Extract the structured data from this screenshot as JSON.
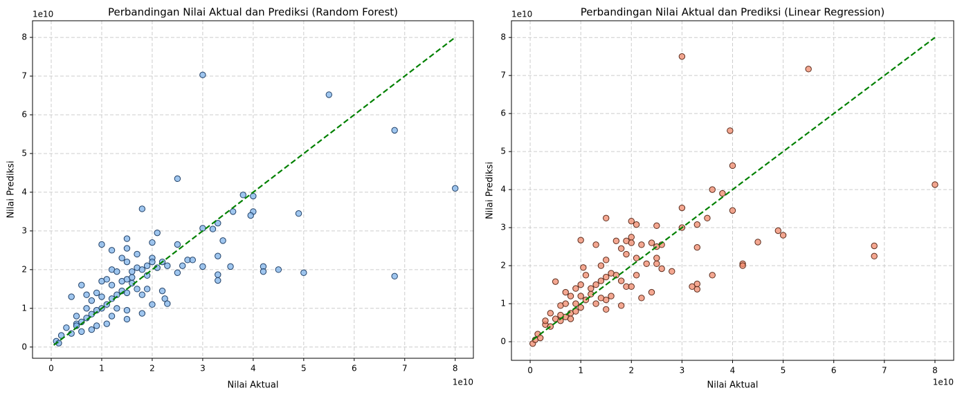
{
  "chart_data": [
    {
      "type": "scatter",
      "title": "Perbandingan Nilai Aktual dan Prediksi (Random Forest)",
      "x_label": "Nilai Aktual",
      "y_label": "Nilai Prediksi",
      "x_offset_label": "1e10",
      "y_offset_label": "1e10",
      "x": [
        3.0,
        5.5,
        6.8,
        8.0,
        2.5,
        1.8,
        3.8,
        4.0,
        4.0,
        3.95,
        4.9,
        3.6,
        3.3,
        3.0,
        3.2,
        3.4,
        2.1,
        2.0,
        2.5,
        1.0,
        1.2,
        1.5,
        1.5,
        1.7,
        3.3,
        3.0,
        3.55,
        4.2,
        4.2,
        4.5,
        5.0,
        6.8,
        3.3,
        3.3,
        2.5,
        2.6,
        2.7,
        2.8,
        2.2,
        2.0,
        2.0,
        1.9,
        2.1,
        2.3,
        2.2,
        2.25,
        2.3,
        2.0,
        1.8,
        1.5,
        1.5,
        1.3,
        1.2,
        1.1,
        0.9,
        0.8,
        0.6,
        0.4,
        0.3,
        0.2,
        0.1,
        0.15,
        0.5,
        0.6,
        0.4,
        0.7,
        0.9,
        1.0,
        1.1,
        1.2,
        1.4,
        1.5,
        1.6,
        1.7,
        1.8,
        1.9,
        1.7,
        1.8,
        1.6,
        1.5,
        1.3,
        1.2,
        1.1,
        1.0,
        0.9,
        0.8,
        0.7,
        0.6,
        0.5,
        1.4,
        1.6,
        1.9,
        1.0,
        0.8,
        0.7,
        0.5,
        1.2,
        1.4,
        1.5,
        1.3
      ],
      "y": [
        7.03,
        6.52,
        5.6,
        4.1,
        4.35,
        3.57,
        3.93,
        3.9,
        3.5,
        3.4,
        3.45,
        3.5,
        3.2,
        3.07,
        3.05,
        2.75,
        2.95,
        2.7,
        2.65,
        2.65,
        2.5,
        2.8,
        2.55,
        2.4,
        2.35,
        2.08,
        2.08,
        2.08,
        1.95,
        2.0,
        1.92,
        1.83,
        1.87,
        1.72,
        1.92,
        2.1,
        2.25,
        2.25,
        2.2,
        2.3,
        2.2,
        2.1,
        2.05,
        2.1,
        1.45,
        1.25,
        1.12,
        1.1,
        0.87,
        0.72,
        0.95,
        1.0,
        0.8,
        0.6,
        0.55,
        0.45,
        0.4,
        0.35,
        0.5,
        0.3,
        0.15,
        0.1,
        0.6,
        1.6,
        1.3,
        1.35,
        1.4,
        1.7,
        1.75,
        1.6,
        1.7,
        1.75,
        1.8,
        1.5,
        1.35,
        1.5,
        2.05,
        2.0,
        1.95,
        1.4,
        1.35,
        1.25,
        1.1,
        1.0,
        0.95,
        0.85,
        0.75,
        0.65,
        0.55,
        1.45,
        1.65,
        1.85,
        1.3,
        1.2,
        1.0,
        0.8,
        2.0,
        2.3,
        2.2,
        1.95
      ],
      "color": "#7fb3ea",
      "edge_color": "#1f3f66",
      "xlim": [
        -0.37,
        8.36
      ],
      "ylim": [
        -0.29,
        8.43
      ],
      "xticks": [
        0,
        1,
        2,
        3,
        4,
        5,
        6,
        7,
        8
      ],
      "yticks": [
        0,
        1,
        2,
        3,
        4,
        5,
        6,
        7,
        8
      ],
      "grid": true,
      "reference_line": {
        "x": [
          0.05,
          8
        ],
        "y": [
          0.05,
          8
        ],
        "color": "#008000"
      }
    },
    {
      "type": "scatter",
      "title": "Perbandingan Nilai Aktual dan Prediksi (Linear Regression)",
      "x_label": "Nilai Aktual",
      "y_label": "Nilai Prediksi",
      "x_offset_label": "1e10",
      "y_offset_label": "1e10",
      "x": [
        3.0,
        5.5,
        3.95,
        4.0,
        3.6,
        3.8,
        4.0,
        3.0,
        3.5,
        3.3,
        3.0,
        2.0,
        2.1,
        2.5,
        1.5,
        1.7,
        1.0,
        1.3,
        2.0,
        1.9,
        2.4,
        2.6,
        2.2,
        2.5,
        3.3,
        3.6,
        3.2,
        3.3,
        3.3,
        2.8,
        2.6,
        2.5,
        2.5,
        2.3,
        2.4,
        2.2,
        1.8,
        1.5,
        1.5,
        1.3,
        4.5,
        4.9,
        5.0,
        4.2,
        4.2,
        6.8,
        6.8,
        8.0,
        0.05,
        0.1,
        0.15,
        0.2,
        0.3,
        0.4,
        0.5,
        0.6,
        0.7,
        0.8,
        0.9,
        1.0,
        0.5,
        0.7,
        0.8,
        0.9,
        1.0,
        1.05,
        1.1,
        1.2,
        1.3,
        1.4,
        1.5,
        1.6,
        1.7,
        1.8,
        1.9,
        2.0,
        2.1,
        1.8,
        1.9,
        2.0,
        2.1,
        1.4,
        1.5,
        1.2,
        1.1,
        0.6,
        0.7,
        0.9,
        1.0,
        0.4,
        0.3,
        1.4,
        1.6,
        0.8,
        0.6
      ],
      "y": [
        7.5,
        7.17,
        5.55,
        4.63,
        4.0,
        3.9,
        3.45,
        3.52,
        3.25,
        3.08,
        3.0,
        3.17,
        3.08,
        3.05,
        3.25,
        2.65,
        2.67,
        2.55,
        2.75,
        2.65,
        2.6,
        2.55,
        2.55,
        2.5,
        2.48,
        1.75,
        1.45,
        1.38,
        1.52,
        1.85,
        1.92,
        2.05,
        2.2,
        2.05,
        1.3,
        1.15,
        0.95,
        0.85,
        1.1,
        1.0,
        2.62,
        2.92,
        2.8,
        2.05,
        2.0,
        2.52,
        2.25,
        4.13,
        -0.05,
        0.05,
        0.2,
        0.1,
        0.45,
        0.4,
        0.6,
        0.55,
        0.65,
        0.75,
        0.8,
        0.9,
        1.58,
        1.3,
        1.2,
        1.4,
        1.5,
        1.95,
        1.75,
        1.4,
        1.5,
        1.6,
        1.7,
        1.8,
        1.75,
        1.6,
        1.45,
        1.45,
        1.75,
        2.45,
        2.3,
        2.6,
        2.2,
        2.0,
        2.15,
        1.25,
        1.1,
        0.95,
        1.0,
        1.0,
        1.2,
        0.75,
        0.55,
        1.15,
        1.2,
        0.6,
        0.7
      ],
      "color": "#f08a6c",
      "edge_color": "#5a2a1a",
      "xlim": [
        -0.37,
        8.37
      ],
      "ylim": [
        -0.49,
        8.44
      ],
      "xticks": [
        0,
        1,
        2,
        3,
        4,
        5,
        6,
        7,
        8
      ],
      "yticks": [
        0,
        1,
        2,
        3,
        4,
        5,
        6,
        7,
        8
      ],
      "grid": true,
      "reference_line": {
        "x": [
          0.05,
          8
        ],
        "y": [
          0.05,
          8
        ],
        "color": "#008000"
      }
    }
  ]
}
